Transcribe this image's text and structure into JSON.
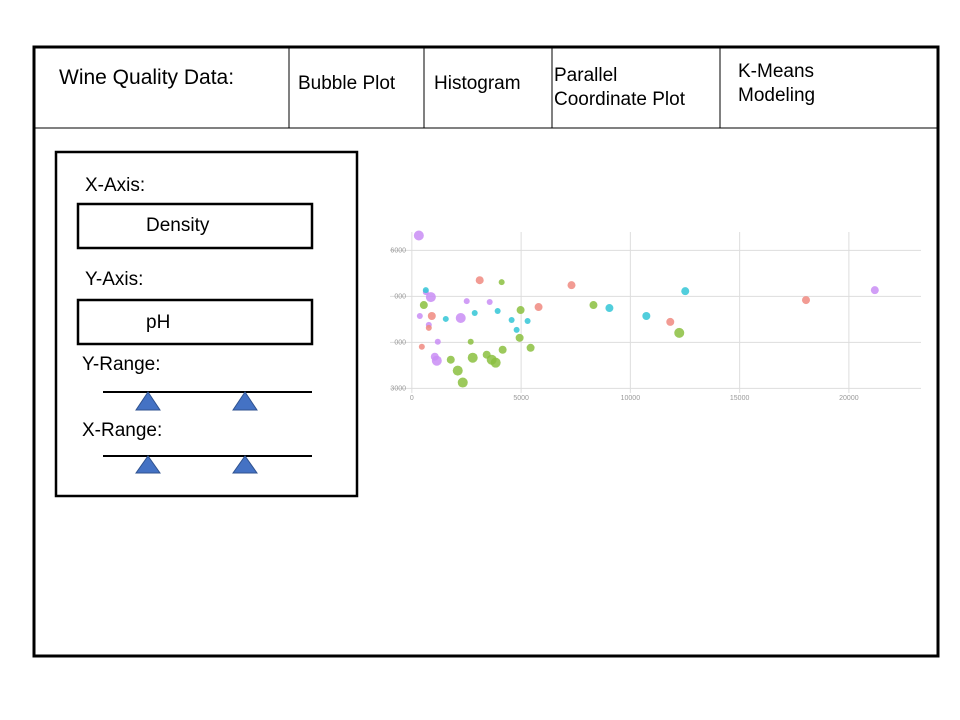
{
  "header": {
    "title": "Wine Quality Data:",
    "tabs": [
      "Bubble Plot",
      "Histogram",
      "Parallel Coordinate Plot",
      "K-Means Modeling"
    ]
  },
  "controls": {
    "x_axis_label": "X-Axis:",
    "x_axis_value": "Density",
    "y_axis_label": "Y-Axis:",
    "y_axis_value": "pH",
    "y_range_label": "Y-Range:",
    "x_range_label": "X-Range:"
  },
  "chart_data": {
    "type": "scatter",
    "xlim": [
      -1000,
      23300
    ],
    "ylim": [
      2900,
      6400
    ],
    "xticks": [
      0,
      5000,
      10000,
      15000,
      20000
    ],
    "yticks": [
      6000,
      {
        "value": 5000,
        "label": "000"
      },
      {
        "value": 4000,
        "label": "000"
      },
      3000
    ],
    "grid": true,
    "series": [
      {
        "color": "#c98df5",
        "x": [
          320,
          640,
          870,
          365,
          776,
          1187,
          1050,
          1142,
          2237,
          2511,
          3562,
          21187
        ],
        "values": [
          6324,
          5093,
          4985,
          4574,
          4380,
          4013,
          3689,
          3602,
          4531,
          4898,
          4877,
          5136
        ],
        "sizes": [
          5,
          3,
          5,
          3,
          3,
          3,
          4,
          5,
          5,
          3,
          3,
          4
        ]
      },
      {
        "color": "#f08a80",
        "x": [
          3105,
          7306,
          5799,
          913,
          776,
          457,
          11826,
          18037
        ],
        "values": [
          5352,
          5244,
          4769,
          4574,
          4315,
          3905,
          4445,
          4920
        ],
        "sizes": [
          4,
          4,
          4,
          4,
          3,
          3,
          4,
          4
        ]
      },
      {
        "color": "#8bbf3f",
        "x": [
          548,
          4110,
          4977,
          2694,
          1781,
          2785,
          3425,
          3653,
          3836,
          5434,
          4932,
          4155,
          2100,
          2329,
          8311,
          12237
        ],
        "values": [
          4812,
          5309,
          4704,
          4013,
          3624,
          3667,
          3732,
          3624,
          3559,
          3883,
          4099,
          3840,
          3386,
          3127,
          4812,
          4207
        ],
        "sizes": [
          4,
          3,
          4,
          3,
          4,
          5,
          4,
          5,
          5,
          4,
          4,
          4,
          5,
          5,
          4,
          5
        ]
      },
      {
        "color": "#33c6d6",
        "x": [
          639,
          1553,
          2877,
          3927,
          4566,
          4795,
          5297,
          9041,
          10731,
          12511
        ],
        "values": [
          5136,
          4510,
          4639,
          4682,
          4488,
          4272,
          4466,
          4747,
          4574,
          5114
        ],
        "sizes": [
          3,
          3,
          3,
          3,
          3,
          3,
          3,
          4,
          4,
          4
        ]
      }
    ]
  }
}
